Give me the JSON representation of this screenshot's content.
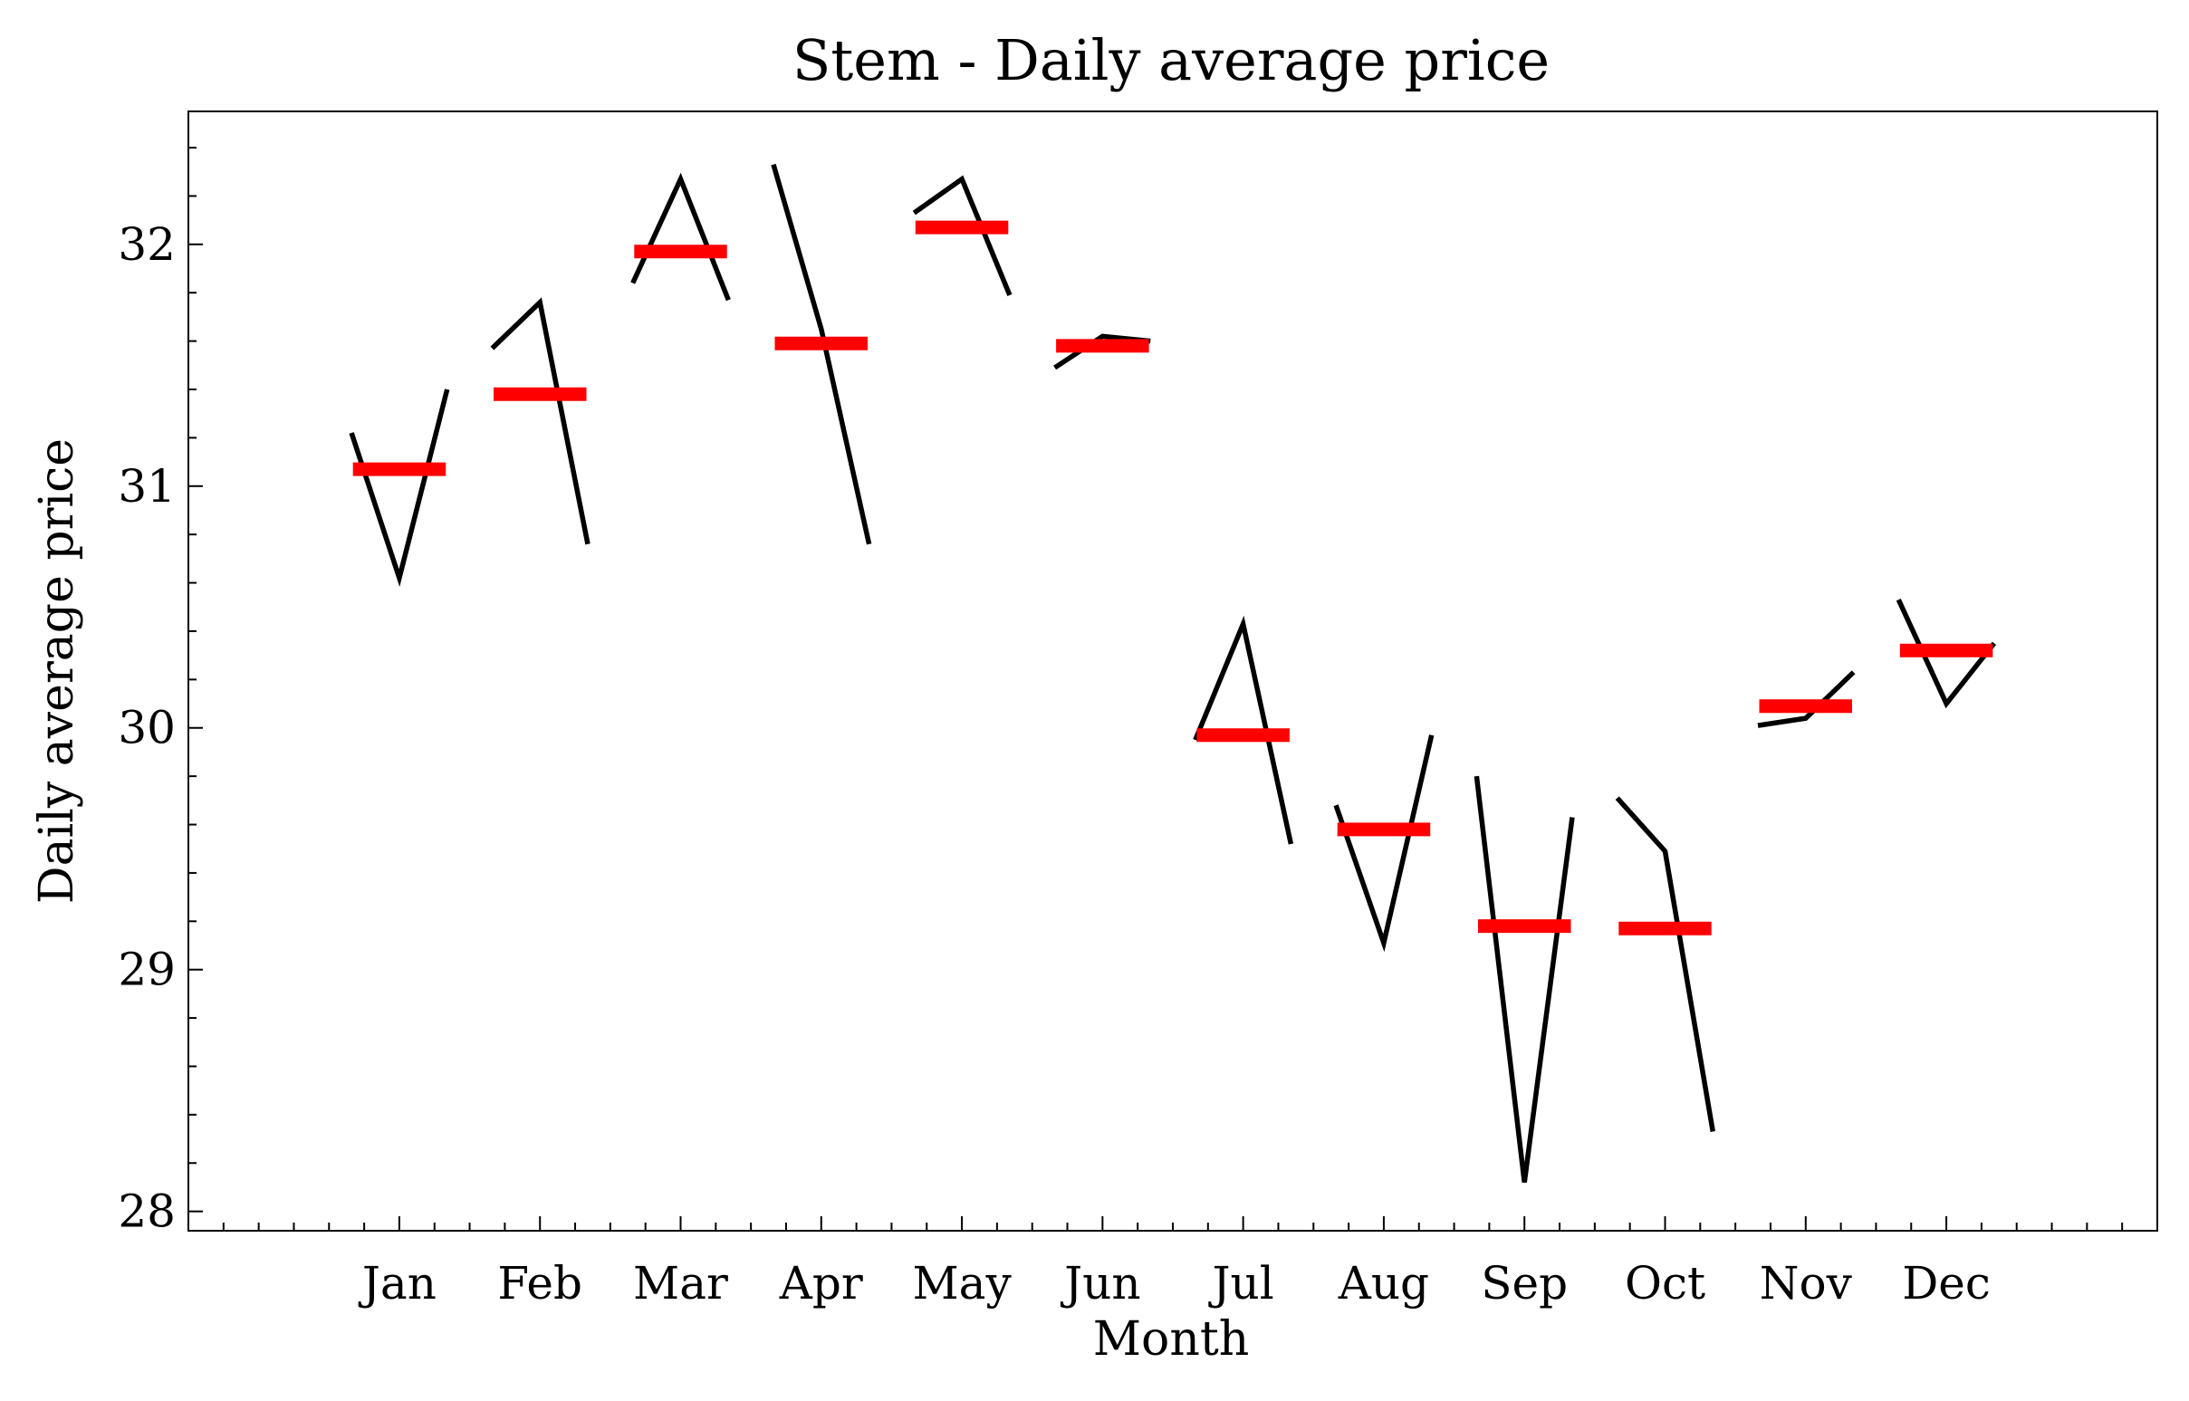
{
  "chart_data": {
    "type": "line",
    "title": "Stem - Daily average price",
    "xlabel": "Month",
    "ylabel": "Daily average price",
    "categories": [
      "Jan",
      "Feb",
      "Mar",
      "Apr",
      "May",
      "Jun",
      "Jul",
      "Aug",
      "Sep",
      "Oct",
      "Nov",
      "Dec"
    ],
    "xlim": [
      -1.5,
      12.5
    ],
    "ylim": [
      27.92,
      32.55
    ],
    "yticks": [
      28,
      29,
      30,
      31,
      32
    ],
    "ytick_labels": [
      "28",
      "29",
      "30",
      "31",
      "32"
    ],
    "grid": false,
    "series": [
      {
        "values": [
          [
            31.22,
            30.62,
            31.4
          ],
          [
            31.57,
            31.76,
            30.76
          ],
          [
            31.84,
            32.27,
            31.77
          ],
          [
            32.33,
            31.65,
            30.76
          ],
          [
            32.13,
            32.27,
            31.79
          ],
          [
            31.49,
            31.62,
            31.6
          ],
          [
            29.95,
            30.43,
            29.52
          ],
          [
            29.68,
            29.11,
            29.97
          ],
          [
            29.8,
            28.12,
            29.63
          ],
          [
            29.71,
            29.49,
            28.33
          ],
          [
            30.01,
            30.04,
            30.23
          ],
          [
            30.53,
            30.1,
            30.35
          ]
        ]
      },
      {
        "values": [
          31.07,
          31.38,
          31.97,
          31.59,
          32.07,
          31.58,
          29.97,
          29.58,
          29.18,
          29.17,
          30.09,
          30.32
        ]
      }
    ],
    "colors": {
      "daily_lines": "#000000",
      "monthly_mean": "#ff0000"
    }
  }
}
